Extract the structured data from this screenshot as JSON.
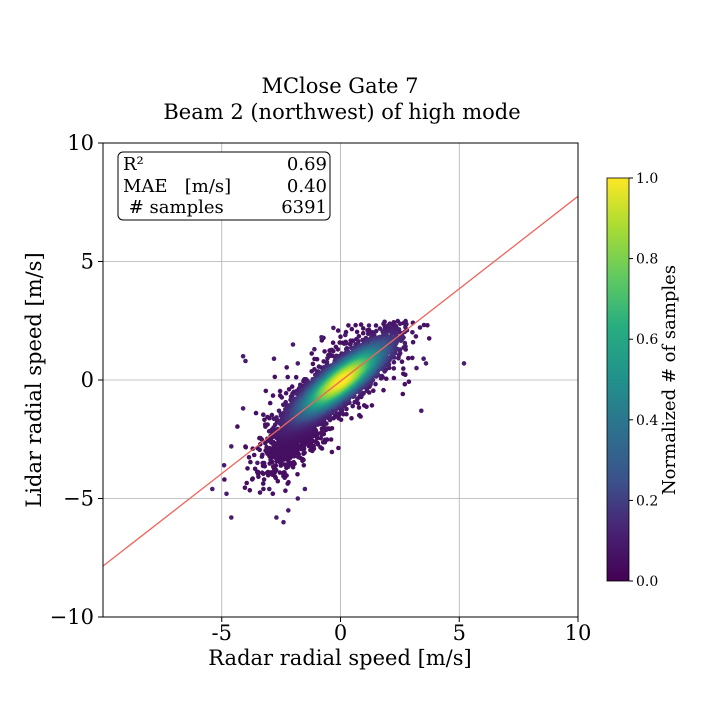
{
  "chart_data": {
    "type": "scatter",
    "title_lines": [
      "MClose Gate 7",
      "Beam 2 (northwest) of high mode"
    ],
    "xlabel": "Radar radial speed [m/s]",
    "ylabel": "Lidar radial speed [m/s]",
    "xlim": [
      -10,
      10
    ],
    "ylim": [
      -10,
      10
    ],
    "xticks": [
      -5,
      0,
      5,
      10
    ],
    "xtick_labels": [
      "-5",
      "0",
      "5",
      "10"
    ],
    "yticks": [
      -10,
      -5,
      0,
      5,
      10
    ],
    "ytick_labels": [
      "−10",
      "−5",
      "0",
      "5",
      "10"
    ],
    "grid": true,
    "fit_line": {
      "slope": 0.78,
      "intercept": -0.05,
      "color": "#f0645a"
    },
    "stats": [
      {
        "label": "R²",
        "value": "0.69"
      },
      {
        "label": "MAE   [m/s]",
        "value": "0.40"
      },
      {
        "label": " # samples",
        "value": "6391"
      }
    ],
    "stats_box_position": "top-left",
    "colorbar": {
      "label": "Normalized # of samples",
      "range": [
        0.0,
        1.0
      ],
      "ticks": [
        "0.0",
        "0.2",
        "0.4",
        "0.6",
        "0.8",
        "1.0"
      ],
      "colormap": "viridis"
    },
    "sample_count": 6391,
    "outlier_points": [
      [
        -5.4,
        -4.6
      ],
      [
        -4.9,
        -3.6
      ],
      [
        -4.6,
        -2.8
      ],
      [
        -4.8,
        -4.8
      ],
      [
        -4.6,
        -5.8
      ],
      [
        -4.1,
        -1.2
      ],
      [
        -4.1,
        1.0
      ],
      [
        -4.0,
        0.8
      ],
      [
        -2.8,
        0.9
      ],
      [
        -2.0,
        1.5
      ],
      [
        -1.8,
        0.7
      ],
      [
        -0.8,
        1.8
      ],
      [
        -0.3,
        2.2
      ],
      [
        1.2,
        2.3
      ],
      [
        2.0,
        2.3
      ],
      [
        2.8,
        2.1
      ],
      [
        3.2,
        0.5
      ],
      [
        3.5,
        0.9
      ],
      [
        3.6,
        0.7
      ],
      [
        3.4,
        -1.3
      ],
      [
        5.2,
        0.7
      ],
      [
        -2.7,
        -5.8
      ],
      [
        -2.4,
        -6.0
      ],
      [
        -2.2,
        -5.5
      ],
      [
        -1.8,
        -5.0
      ],
      [
        -3.0,
        -4.6
      ],
      [
        -3.5,
        -3.5
      ],
      [
        -1.5,
        -4.6
      ],
      [
        0.2,
        1.9
      ],
      [
        -1.1,
        1.3
      ]
    ]
  }
}
